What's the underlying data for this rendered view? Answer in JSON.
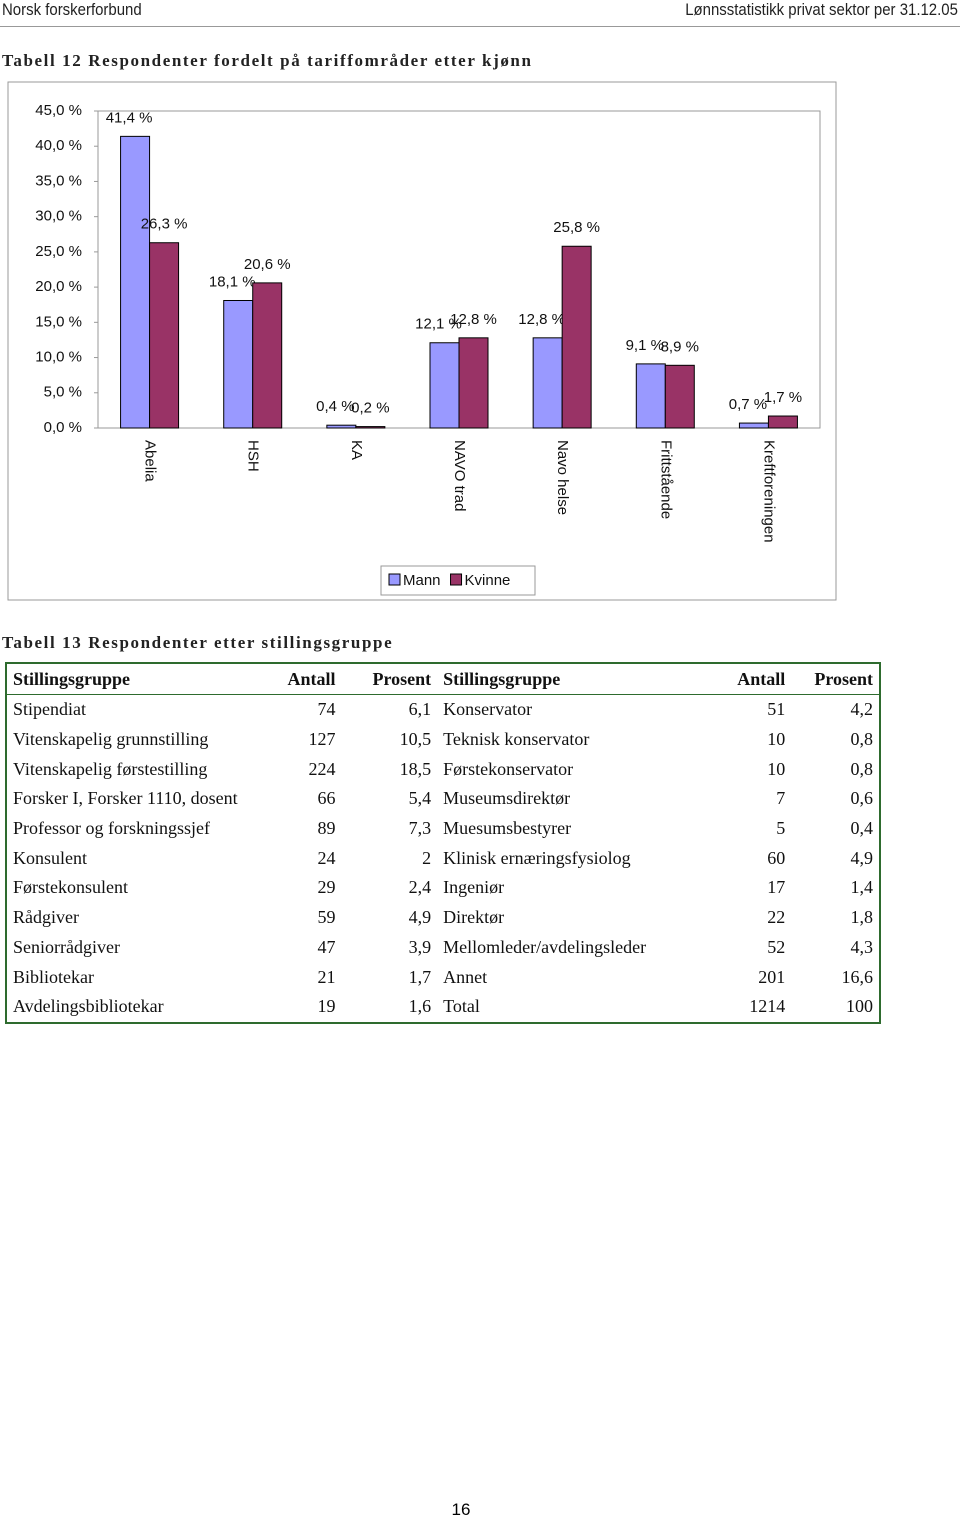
{
  "header": {
    "left": "Norsk forskerforbund",
    "right": "Lønnsstatistikk privat sektor per 31.12.05"
  },
  "chart_data": {
    "type": "bar",
    "title": "Tabell 12 Respondenter fordelt på tariffområder etter kjønn",
    "categories": [
      "Abelia",
      "HSH",
      "KA",
      "NAVO trad",
      "Navo helse",
      "Frittstående",
      "Kreftforeningen"
    ],
    "series": [
      {
        "name": "Mann",
        "color": "#9999ff",
        "values": [
          41.4,
          18.1,
          0.4,
          12.1,
          12.8,
          9.1,
          0.7
        ],
        "value_labels": [
          "41,4 %",
          "18,1 %",
          "0,4 %",
          "12,1 %",
          "12,8 %",
          "9,1 %",
          "0,7 %"
        ]
      },
      {
        "name": "Kvinne",
        "color": "#993366",
        "values": [
          26.3,
          20.6,
          0.2,
          12.8,
          25.8,
          8.9,
          1.7
        ],
        "value_labels": [
          "26,3 %",
          "20,6 %",
          "0,2 %",
          "12,8 %",
          "25,8 %",
          "8,9 %",
          "1,7 %"
        ]
      }
    ],
    "ylim": [
      0,
      45
    ],
    "yticks": [
      {
        "value": 0,
        "label": "0,0 %"
      },
      {
        "value": 5,
        "label": "5,0 %"
      },
      {
        "value": 10,
        "label": "10,0 %"
      },
      {
        "value": 15,
        "label": "15,0 %"
      },
      {
        "value": 20,
        "label": "20,0 %"
      },
      {
        "value": 25,
        "label": "25,0 %"
      },
      {
        "value": 30,
        "label": "30,0 %"
      },
      {
        "value": 35,
        "label": "35,0 %"
      },
      {
        "value": 40,
        "label": "40,0 %"
      },
      {
        "value": 45,
        "label": "45,0 %"
      }
    ],
    "grid": false,
    "legend": "bottom"
  },
  "table": {
    "title": "Tabell 13 Respondenter etter stillingsgruppe",
    "header": [
      "Stillingsgruppe",
      "Antall",
      "Prosent",
      "Stillingsgruppe",
      "Antall",
      "Prosent"
    ],
    "rows": [
      [
        "Stipendiat",
        "74",
        "6,1",
        "Konservator",
        "51",
        "4,2"
      ],
      [
        "Vitenskapelig grunnstilling",
        "127",
        "10,5",
        "Teknisk konservator",
        "10",
        "0,8"
      ],
      [
        "Vitenskapelig førstestilling",
        "224",
        "18,5",
        "Førstekonservator",
        "10",
        "0,8"
      ],
      [
        "Forsker I, Forsker 1110, dosent",
        "66",
        "5,4",
        "Museumsdirektør",
        "7",
        "0,6"
      ],
      [
        "Professor og forskningssjef",
        "89",
        "7,3",
        "Muesumsbestyrer",
        "5",
        "0,4"
      ],
      [
        "Konsulent",
        "24",
        "2",
        "Klinisk ernæringsfysiolog",
        "60",
        "4,9"
      ],
      [
        "Førstekonsulent",
        "29",
        "2,4",
        "Ingeniør",
        "17",
        "1,4"
      ],
      [
        "Rådgiver",
        "59",
        "4,9",
        "Direktør",
        "22",
        "1,8"
      ],
      [
        "Seniorrådgiver",
        "47",
        "3,9",
        "Mellomleder/avdelingsleder",
        "52",
        "4,3"
      ],
      [
        "Bibliotekar",
        "21",
        "1,7",
        "Annet",
        "201",
        "16,6"
      ],
      [
        "Avdelingsbibliotekar",
        "19",
        "1,6",
        "Total",
        "1214",
        "100"
      ]
    ]
  },
  "page_number": "16"
}
